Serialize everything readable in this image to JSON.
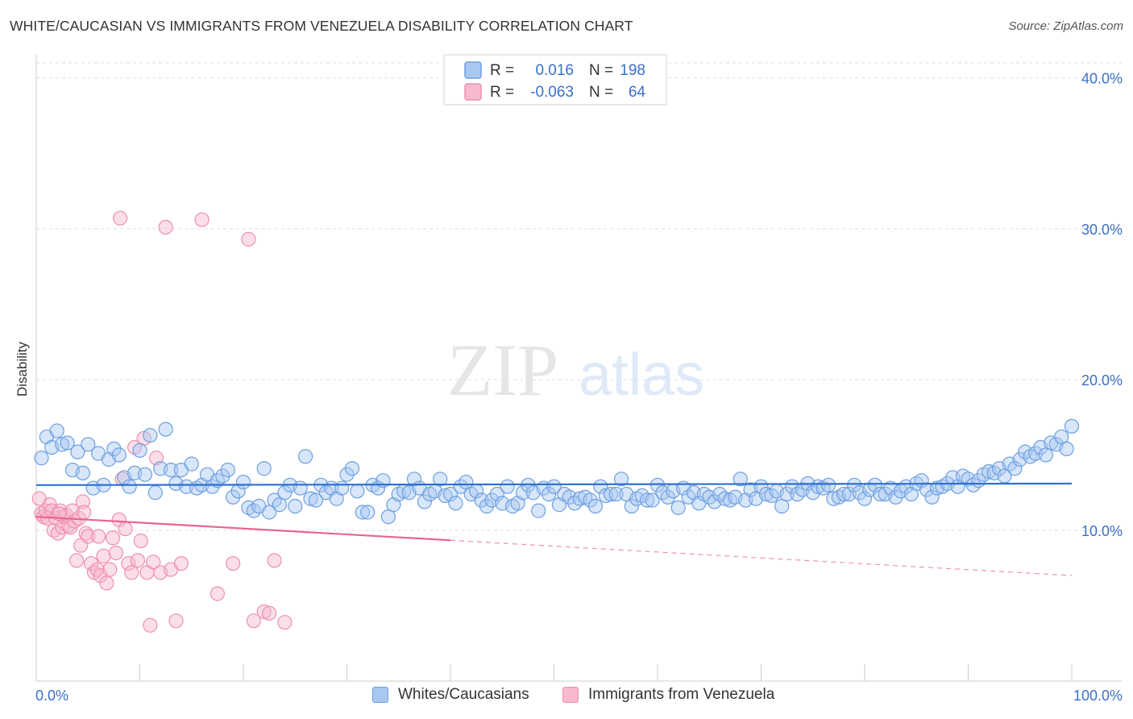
{
  "title": "WHITE/CAUCASIAN VS IMMIGRANTS FROM VENEZUELA DISABILITY CORRELATION CHART",
  "source": "Source: ZipAtlas.com",
  "watermark": {
    "zip": "ZIP",
    "atlas": "atlas"
  },
  "colors": {
    "blue_fill": "#a9c8f1",
    "blue_stroke": "#6d9fe0",
    "blue_line": "#2f6fcf",
    "pink_fill": "#f7b9cc",
    "pink_stroke": "#ee8fae",
    "pink_line": "#e8648f",
    "tick_text": "#3a70c8",
    "grid": "#dddddd"
  },
  "legend": {
    "rows": [
      {
        "r_label": "R =",
        "r_value": "0.016",
        "n_label": "N =",
        "n_value": "198"
      },
      {
        "r_label": "R =",
        "r_value": "-0.063",
        "n_label": "N =",
        "n_value": "64"
      }
    ]
  },
  "bottom_legend": {
    "series1": "Whites/Caucasians",
    "series2": "Immigrants from Venezuela"
  },
  "chart_data": {
    "type": "scatter",
    "ylabel": "Disability",
    "xlabel": "",
    "xlim": [
      0,
      100
    ],
    "ylim": [
      0,
      41
    ],
    "x_tick_labels": [
      "0.0%",
      "100.0%"
    ],
    "y_ticks": [
      10,
      20,
      30,
      40
    ],
    "y_tick_labels": [
      "10.0%",
      "20.0%",
      "30.0%",
      "40.0%"
    ],
    "series": [
      {
        "name": "Whites/Caucasians",
        "R": 0.016,
        "N": 198,
        "trend": {
          "x": [
            0,
            100
          ],
          "y": [
            13.0,
            13.1
          ],
          "dashed_from": null
        },
        "points": [
          [
            0.5,
            14.8
          ],
          [
            1,
            16.2
          ],
          [
            1.5,
            15.5
          ],
          [
            2,
            16.6
          ],
          [
            2.5,
            15.7
          ],
          [
            3,
            15.8
          ],
          [
            3.5,
            14.0
          ],
          [
            4,
            15.2
          ],
          [
            4.5,
            13.8
          ],
          [
            5,
            15.7
          ],
          [
            5.5,
            12.8
          ],
          [
            6,
            15.1
          ],
          [
            6.5,
            13.0
          ],
          [
            7,
            14.7
          ],
          [
            7.5,
            15.4
          ],
          [
            8,
            15.0
          ],
          [
            8.5,
            13.5
          ],
          [
            9,
            12.9
          ],
          [
            9.5,
            13.8
          ],
          [
            10,
            15.3
          ],
          [
            10.5,
            13.7
          ],
          [
            11,
            16.3
          ],
          [
            11.5,
            12.5
          ],
          [
            12,
            14.1
          ],
          [
            12.5,
            16.7
          ],
          [
            13,
            14.0
          ],
          [
            13.5,
            13.1
          ],
          [
            14,
            14.0
          ],
          [
            14.5,
            12.9
          ],
          [
            15,
            14.4
          ],
          [
            15.5,
            12.8
          ],
          [
            16,
            13.0
          ],
          [
            16.5,
            13.7
          ],
          [
            17,
            12.9
          ],
          [
            17.5,
            13.3
          ],
          [
            18,
            13.6
          ],
          [
            18.5,
            14.0
          ],
          [
            19,
            12.2
          ],
          [
            19.5,
            12.6
          ],
          [
            20,
            13.2
          ],
          [
            20.5,
            11.5
          ],
          [
            21,
            11.3
          ],
          [
            21.5,
            11.6
          ],
          [
            22,
            14.1
          ],
          [
            22.5,
            11.2
          ],
          [
            23,
            12.0
          ],
          [
            23.5,
            11.7
          ],
          [
            24,
            12.5
          ],
          [
            24.5,
            13.0
          ],
          [
            25,
            11.6
          ],
          [
            25.5,
            12.8
          ],
          [
            26,
            14.9
          ],
          [
            26.5,
            12.1
          ],
          [
            27,
            12.0
          ],
          [
            27.5,
            13.0
          ],
          [
            28,
            12.5
          ],
          [
            28.5,
            12.8
          ],
          [
            29,
            12.1
          ],
          [
            29.5,
            12.8
          ],
          [
            30,
            13.7
          ],
          [
            30.5,
            14.1
          ],
          [
            31,
            12.6
          ],
          [
            31.5,
            11.2
          ],
          [
            32,
            11.2
          ],
          [
            32.5,
            13.0
          ],
          [
            33,
            12.8
          ],
          [
            33.5,
            13.3
          ],
          [
            34,
            10.9
          ],
          [
            34.5,
            11.7
          ],
          [
            35,
            12.4
          ],
          [
            35.5,
            12.6
          ],
          [
            36,
            12.5
          ],
          [
            36.5,
            13.4
          ],
          [
            37,
            12.8
          ],
          [
            37.5,
            11.9
          ],
          [
            38,
            12.4
          ],
          [
            38.5,
            12.6
          ],
          [
            39,
            13.4
          ],
          [
            39.5,
            12.3
          ],
          [
            40,
            12.4
          ],
          [
            40.5,
            11.8
          ],
          [
            41,
            12.9
          ],
          [
            41.5,
            13.2
          ],
          [
            42,
            12.4
          ],
          [
            42.5,
            12.6
          ],
          [
            43,
            12.0
          ],
          [
            43.5,
            11.6
          ],
          [
            44,
            12.0
          ],
          [
            44.5,
            12.4
          ],
          [
            45,
            11.8
          ],
          [
            45.5,
            12.9
          ],
          [
            46,
            11.6
          ],
          [
            46.5,
            11.8
          ],
          [
            47,
            12.5
          ],
          [
            47.5,
            13.0
          ],
          [
            48,
            12.5
          ],
          [
            48.5,
            11.3
          ],
          [
            49,
            12.8
          ],
          [
            49.5,
            12.4
          ],
          [
            50,
            12.9
          ],
          [
            50.5,
            11.7
          ],
          [
            51,
            12.4
          ],
          [
            51.5,
            12.2
          ],
          [
            52,
            11.8
          ],
          [
            52.5,
            12.1
          ],
          [
            53,
            12.2
          ],
          [
            53.5,
            12.0
          ],
          [
            54,
            11.6
          ],
          [
            54.5,
            12.9
          ],
          [
            55,
            12.3
          ],
          [
            55.5,
            12.4
          ],
          [
            56,
            12.4
          ],
          [
            56.5,
            13.4
          ],
          [
            57,
            12.4
          ],
          [
            57.5,
            11.6
          ],
          [
            58,
            12.1
          ],
          [
            58.5,
            12.3
          ],
          [
            59,
            12.0
          ],
          [
            59.5,
            12.0
          ],
          [
            60,
            13.0
          ],
          [
            60.5,
            12.5
          ],
          [
            61,
            12.2
          ],
          [
            61.5,
            12.6
          ],
          [
            62,
            11.5
          ],
          [
            62.5,
            12.8
          ],
          [
            63,
            12.2
          ],
          [
            63.5,
            12.5
          ],
          [
            64,
            11.8
          ],
          [
            64.5,
            12.4
          ],
          [
            65,
            12.2
          ],
          [
            65.5,
            11.9
          ],
          [
            66,
            12.4
          ],
          [
            66.5,
            12.1
          ],
          [
            67,
            12.0
          ],
          [
            67.5,
            12.2
          ],
          [
            68,
            13.4
          ],
          [
            68.5,
            12.0
          ],
          [
            69,
            12.7
          ],
          [
            69.5,
            12.1
          ],
          [
            70,
            12.9
          ],
          [
            70.5,
            12.4
          ],
          [
            71,
            12.3
          ],
          [
            71.5,
            12.6
          ],
          [
            72,
            11.6
          ],
          [
            72.5,
            12.4
          ],
          [
            73,
            12.9
          ],
          [
            73.5,
            12.4
          ],
          [
            74,
            12.7
          ],
          [
            74.5,
            13.1
          ],
          [
            75,
            12.5
          ],
          [
            75.5,
            12.9
          ],
          [
            76,
            12.8
          ],
          [
            76.5,
            13.0
          ],
          [
            77,
            12.1
          ],
          [
            77.5,
            12.2
          ],
          [
            78,
            12.4
          ],
          [
            78.5,
            12.4
          ],
          [
            79,
            13.0
          ],
          [
            79.5,
            12.5
          ],
          [
            80,
            12.1
          ],
          [
            80.5,
            12.7
          ],
          [
            81,
            13.0
          ],
          [
            81.5,
            12.4
          ],
          [
            82,
            12.4
          ],
          [
            82.5,
            12.8
          ],
          [
            83,
            12.2
          ],
          [
            83.5,
            12.6
          ],
          [
            84,
            12.9
          ],
          [
            84.5,
            12.4
          ],
          [
            85,
            13.1
          ],
          [
            85.5,
            13.3
          ],
          [
            86,
            12.7
          ],
          [
            86.5,
            12.2
          ],
          [
            87,
            12.8
          ],
          [
            87.5,
            12.9
          ],
          [
            88,
            13.1
          ],
          [
            88.5,
            13.5
          ],
          [
            89,
            12.9
          ],
          [
            89.5,
            13.6
          ],
          [
            90,
            13.4
          ],
          [
            90.5,
            13.0
          ],
          [
            91,
            13.3
          ],
          [
            91.5,
            13.7
          ],
          [
            92,
            13.9
          ],
          [
            92.5,
            13.8
          ],
          [
            93,
            14.1
          ],
          [
            93.5,
            13.6
          ],
          [
            94,
            14.4
          ],
          [
            94.5,
            14.1
          ],
          [
            95,
            14.7
          ],
          [
            95.5,
            15.2
          ],
          [
            96,
            14.9
          ],
          [
            96.5,
            15.1
          ],
          [
            97,
            15.5
          ],
          [
            97.5,
            15.0
          ],
          [
            98,
            15.8
          ],
          [
            98.5,
            15.7
          ],
          [
            99,
            16.2
          ],
          [
            99.5,
            15.4
          ],
          [
            100,
            16.9
          ]
        ]
      },
      {
        "name": "Immigrants from Venezuela",
        "R": -0.063,
        "N": 64,
        "trend": {
          "x": [
            0,
            100
          ],
          "y": [
            10.9,
            7.0
          ],
          "dashed_from": 40
        },
        "points": [
          [
            0.3,
            12.1
          ],
          [
            0.5,
            11.1
          ],
          [
            0.7,
            10.9
          ],
          [
            0.9,
            11.3
          ],
          [
            1.1,
            10.8
          ],
          [
            1.3,
            11.7
          ],
          [
            1.5,
            11.3
          ],
          [
            1.7,
            10.0
          ],
          [
            1.9,
            10.8
          ],
          [
            2.1,
            9.8
          ],
          [
            2.3,
            11.3
          ],
          [
            2.5,
            10.2
          ],
          [
            2.7,
            10.9
          ],
          [
            2.9,
            11.0
          ],
          [
            3.1,
            10.3
          ],
          [
            3.3,
            10.2
          ],
          [
            3.5,
            11.3
          ],
          [
            3.7,
            10.6
          ],
          [
            3.9,
            8.0
          ],
          [
            4.1,
            10.8
          ],
          [
            4.3,
            9.0
          ],
          [
            4.5,
            11.9
          ],
          [
            4.8,
            9.8
          ],
          [
            5.0,
            9.6
          ],
          [
            5.3,
            7.8
          ],
          [
            5.6,
            7.2
          ],
          [
            5.9,
            7.4
          ],
          [
            6.2,
            7.0
          ],
          [
            6.5,
            8.3
          ],
          [
            6.8,
            6.5
          ],
          [
            7.1,
            7.4
          ],
          [
            7.4,
            9.5
          ],
          [
            7.7,
            8.5
          ],
          [
            8.0,
            10.7
          ],
          [
            8.3,
            13.4
          ],
          [
            8.6,
            10.1
          ],
          [
            8.9,
            7.8
          ],
          [
            9.2,
            7.2
          ],
          [
            9.5,
            15.5
          ],
          [
            9.8,
            8.0
          ],
          [
            10.1,
            9.3
          ],
          [
            10.4,
            16.1
          ],
          [
            10.7,
            7.2
          ],
          [
            11.0,
            3.7
          ],
          [
            11.3,
            7.9
          ],
          [
            11.6,
            14.8
          ],
          [
            12.0,
            7.2
          ],
          [
            12.5,
            30.1
          ],
          [
            13.0,
            7.4
          ],
          [
            13.5,
            4.0
          ],
          [
            14.0,
            7.8
          ],
          [
            16.0,
            30.6
          ],
          [
            17.5,
            5.8
          ],
          [
            19.0,
            7.8
          ],
          [
            20.5,
            29.3
          ],
          [
            21.0,
            4.0
          ],
          [
            22.0,
            4.6
          ],
          [
            22.5,
            4.5
          ],
          [
            23.0,
            8.0
          ],
          [
            24.0,
            3.9
          ],
          [
            8.1,
            30.7
          ],
          [
            6.0,
            9.6
          ],
          [
            4.6,
            11.2
          ],
          [
            2.2,
            11.1
          ]
        ]
      }
    ]
  }
}
